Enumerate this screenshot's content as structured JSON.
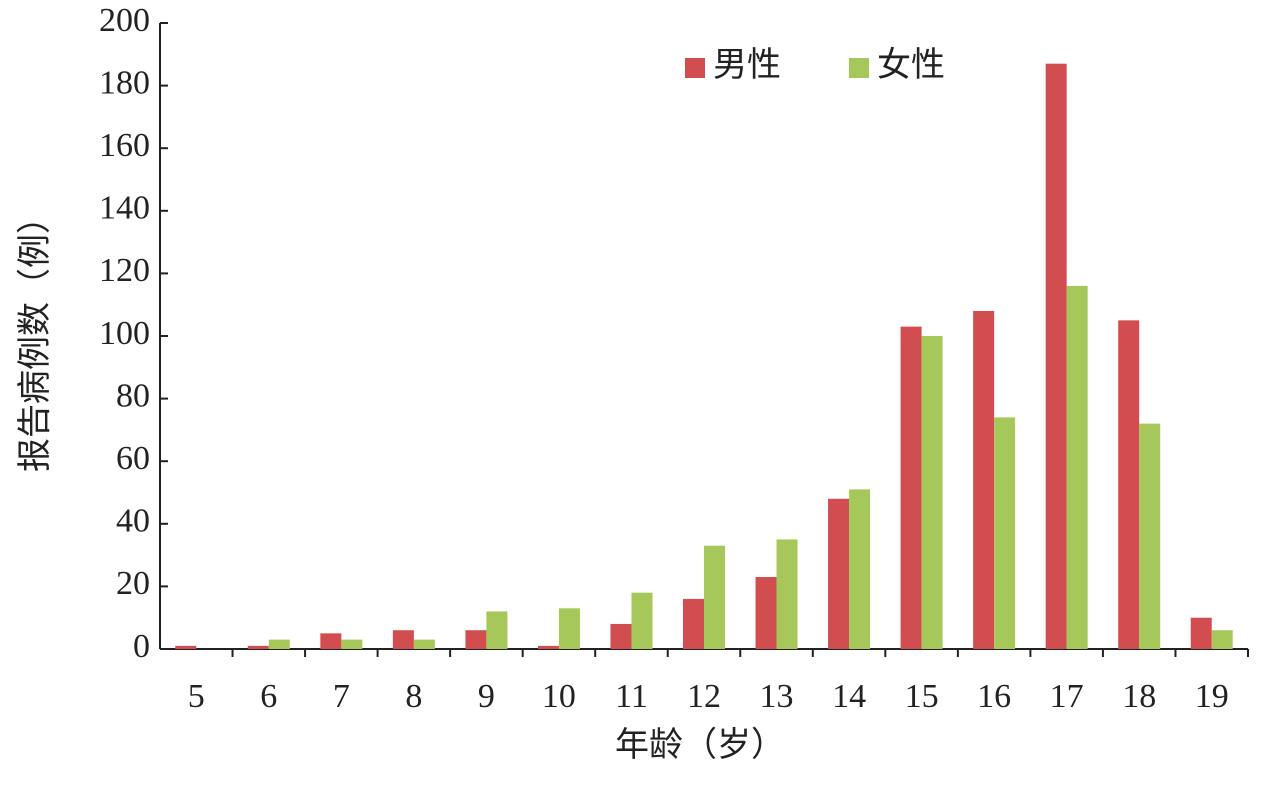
{
  "chart_data": {
    "type": "bar",
    "x_label": "年龄（岁）",
    "y_label": "报告病例数（例）",
    "categories": [
      "5",
      "6",
      "7",
      "8",
      "9",
      "10",
      "11",
      "12",
      "13",
      "14",
      "15",
      "16",
      "17",
      "18",
      "19"
    ],
    "series": [
      {
        "name": "男性",
        "color": "#d24d4f",
        "values": [
          1,
          1,
          5,
          6,
          6,
          1,
          8,
          16,
          23,
          48,
          103,
          108,
          187,
          105,
          10
        ]
      },
      {
        "name": "女性",
        "color": "#a6c85a",
        "values": [
          0,
          3,
          3,
          3,
          12,
          13,
          18,
          33,
          35,
          51,
          100,
          74,
          116,
          72,
          6
        ]
      }
    ],
    "ylim": [
      0,
      200
    ],
    "yticks": [
      0,
      20,
      40,
      60,
      80,
      100,
      120,
      140,
      160,
      180,
      200
    ]
  }
}
